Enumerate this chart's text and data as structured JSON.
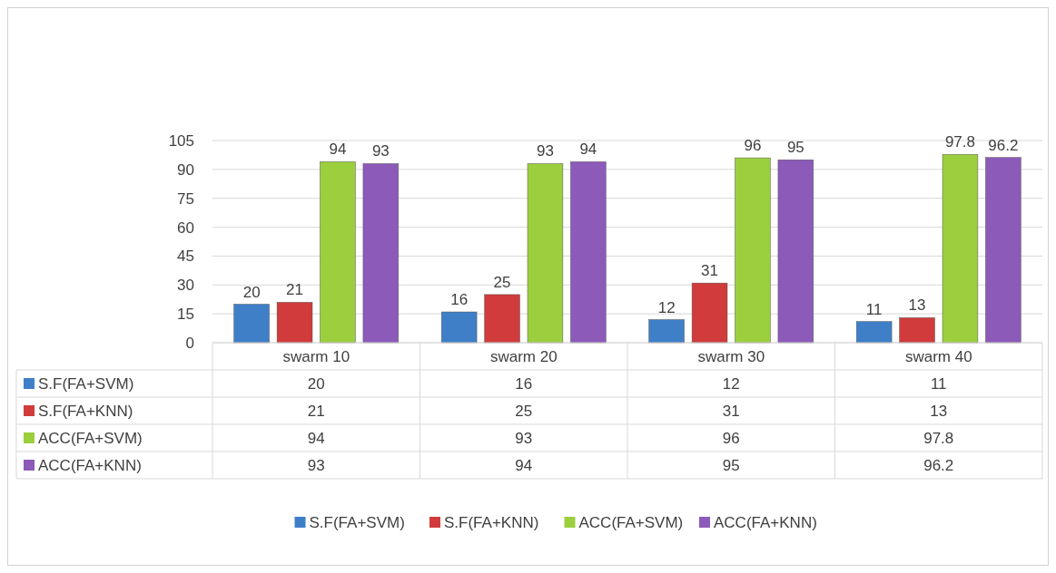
{
  "chart_data": {
    "type": "bar",
    "categories": [
      "swarm 10",
      "swarm 20",
      "swarm 30",
      "swarm 40"
    ],
    "series": [
      {
        "name": "S.F(FA+SVM)",
        "color": "#3f7fc8",
        "values": [
          20,
          16,
          12,
          11
        ],
        "value_labels": [
          "20",
          "16",
          "12",
          "11"
        ]
      },
      {
        "name": "S.F(FA+KNN)",
        "color": "#d13b3b",
        "values": [
          21,
          25,
          31,
          13
        ],
        "value_labels": [
          "21",
          "25",
          "31",
          "13"
        ]
      },
      {
        "name": "ACC(FA+SVM)",
        "color": "#9bcf3e",
        "values": [
          94,
          93,
          96,
          97.8
        ],
        "value_labels": [
          "94",
          "93",
          "96",
          "97.8"
        ]
      },
      {
        "name": "ACC(FA+KNN)",
        "color": "#8c5ab8",
        "values": [
          93,
          94,
          95,
          96.2
        ],
        "value_labels": [
          "93",
          "94",
          "95",
          "96.2"
        ]
      }
    ],
    "ylim": [
      0,
      105
    ],
    "yticks": [
      0,
      15,
      30,
      45,
      60,
      75,
      90,
      105
    ],
    "grid": "y",
    "legend": "bottom",
    "annotations": [
      "20",
      "16",
      "12",
      "11",
      "21",
      "25",
      "31",
      "13",
      "94",
      "93",
      "96",
      "97.8",
      "93",
      "94",
      "95",
      "96.2"
    ]
  }
}
